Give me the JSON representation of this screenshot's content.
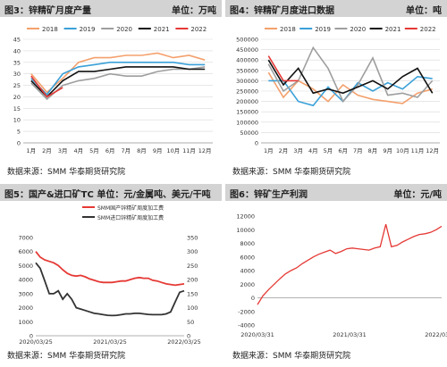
{
  "panels": [
    {
      "title": "图3：锌精矿月度产量",
      "unit": "单位：万吨",
      "source": "数据来源：SMM 华泰期货研究院"
    },
    {
      "title": "图4：锌精矿月度进口数据",
      "unit": "单位：吨",
      "source": "数据来源：SMM 华泰期货研究院"
    },
    {
      "title": "图5：国产&进口矿TC 单位：元/金属吨、美元/干吨",
      "unit": "",
      "source": "数据来源：SMM 华泰期货研究院"
    },
    {
      "title": "图6：锌矿生产利润",
      "unit": "单位：元/吨",
      "source": "数据来源：SMM 华泰期货研究院"
    }
  ],
  "colors": {
    "y2018": "#f4a06c",
    "y2019": "#3aa0d8",
    "y2020": "#9e9e9e",
    "y2021": "#111111",
    "y2022": "#e53935",
    "red": "#e53935",
    "black": "#333333",
    "grid": "#d9d9d9"
  },
  "chart_data": [
    {
      "type": "line",
      "categories": [
        "1月",
        "2月",
        "3月",
        "4月",
        "5月",
        "6月",
        "7月",
        "8月",
        "9月",
        "10月",
        "11月",
        "12月"
      ],
      "ylim": [
        0,
        45
      ],
      "yticks": [
        0,
        5,
        10,
        15,
        20,
        25,
        30,
        35,
        40,
        45
      ],
      "legend_position": "top",
      "series": [
        {
          "name": "2018",
          "color": "#f4a06c",
          "values": [
            30,
            22,
            28,
            35,
            37,
            37,
            38,
            38,
            39,
            37,
            38,
            36
          ]
        },
        {
          "name": "2019",
          "color": "#3aa0d8",
          "values": [
            28,
            21,
            30,
            33,
            34,
            35,
            35,
            35,
            35,
            35,
            34,
            34
          ]
        },
        {
          "name": "2020",
          "color": "#9e9e9e",
          "values": [
            26,
            19,
            25,
            27,
            28,
            30,
            29,
            29,
            31,
            32,
            32,
            33
          ]
        },
        {
          "name": "2021",
          "color": "#111111",
          "values": [
            27,
            20,
            27,
            31,
            31,
            32,
            33,
            33,
            33,
            33,
            32,
            32
          ]
        },
        {
          "name": "2022",
          "color": "#e53935",
          "values": [
            29,
            20,
            24,
            null,
            null,
            null,
            null,
            null,
            null,
            null,
            null,
            null
          ]
        }
      ]
    },
    {
      "type": "line",
      "categories": [
        "1月",
        "2月",
        "3月",
        "4月",
        "5月",
        "6月",
        "7月",
        "8月",
        "9月",
        "10月",
        "11月",
        "12月"
      ],
      "ylim": [
        0,
        500000
      ],
      "yticks": [
        0,
        50000,
        100000,
        150000,
        200000,
        250000,
        300000,
        350000,
        400000,
        450000,
        500000
      ],
      "legend_position": "top",
      "series": [
        {
          "name": "2018",
          "color": "#f4a06c",
          "values": [
            340000,
            220000,
            300000,
            260000,
            200000,
            280000,
            230000,
            210000,
            200000,
            190000,
            240000,
            260000
          ]
        },
        {
          "name": "2019",
          "color": "#3aa0d8",
          "values": [
            300000,
            300000,
            200000,
            180000,
            270000,
            200000,
            290000,
            250000,
            290000,
            260000,
            320000,
            310000
          ]
        },
        {
          "name": "2020",
          "color": "#9e9e9e",
          "values": [
            380000,
            250000,
            300000,
            460000,
            360000,
            200000,
            280000,
            410000,
            230000,
            240000,
            220000,
            300000
          ]
        },
        {
          "name": "2021",
          "color": "#111111",
          "values": [
            400000,
            280000,
            360000,
            240000,
            260000,
            240000,
            270000,
            300000,
            260000,
            320000,
            360000,
            240000
          ]
        },
        {
          "name": "2022",
          "color": "#e53935",
          "values": [
            420000,
            300000,
            300000,
            null,
            null,
            null,
            null,
            null,
            null,
            null,
            null,
            null
          ]
        }
      ]
    },
    {
      "type": "line",
      "xticks": [
        "2020/03/25",
        "2021/03/25",
        "2022/03/25"
      ],
      "ylim_left": [
        0,
        7000
      ],
      "yticks_left": [
        0,
        1000,
        2000,
        3000,
        4000,
        5000,
        6000,
        7000
      ],
      "ylim_right": [
        0,
        350
      ],
      "yticks_right": [
        0,
        50,
        100,
        150,
        200,
        250,
        300,
        350
      ],
      "legend_position": "top",
      "series": [
        {
          "name": "SMM国产锌精矿周度加工费",
          "axis": "left",
          "color": "#e53935",
          "values": [
            6000,
            5600,
            5400,
            5300,
            5200,
            5000,
            4700,
            4450,
            4300,
            4250,
            4300,
            4200,
            4050,
            3950,
            3850,
            3800,
            3800,
            3800,
            3850,
            3900,
            3900,
            4000,
            4100,
            4150,
            4100,
            4100,
            3950,
            3900,
            3800,
            3700,
            3650,
            3600,
            3650,
            3700
          ]
        },
        {
          "name": "SMM进口锌精矿周度加工费",
          "axis": "right",
          "color": "#333333",
          "values": [
            260,
            240,
            195,
            150,
            150,
            160,
            130,
            150,
            130,
            100,
            95,
            90,
            85,
            80,
            78,
            75,
            73,
            72,
            73,
            75,
            78,
            78,
            80,
            80,
            78,
            76,
            75,
            75,
            75,
            78,
            85,
            120,
            155,
            160
          ]
        }
      ]
    },
    {
      "type": "line",
      "xticks": [
        "2020/03/31",
        "2021/03/31",
        "2022/03/31"
      ],
      "ylim": [
        -4000,
        12000
      ],
      "yticks": [
        -4000,
        -2000,
        0,
        2000,
        4000,
        6000,
        8000,
        10000,
        12000
      ],
      "series": [
        {
          "name": "",
          "color": "#e53935",
          "values": [
            -1000,
            300,
            1200,
            2000,
            2800,
            3500,
            4000,
            4400,
            5000,
            5500,
            6000,
            6400,
            6700,
            7000,
            6500,
            6800,
            7200,
            7300,
            7200,
            7100,
            7000,
            7300,
            7500,
            10800,
            7500,
            7700,
            8200,
            8600,
            9000,
            9300,
            9400,
            9600,
            10000,
            10500
          ]
        }
      ]
    }
  ]
}
